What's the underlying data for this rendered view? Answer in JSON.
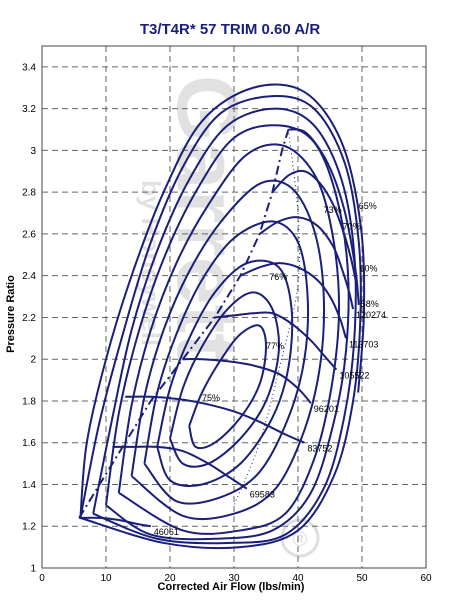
{
  "chart_data": {
    "type": "line",
    "title": "T3/T4R* 57 TRIM  0.60 A/R",
    "xlabel": "Corrected Air Flow (lbs/min)",
    "ylabel": "Pressure Ratio",
    "xlim": [
      0,
      60
    ],
    "ylim": [
      1,
      3.5
    ],
    "x_ticks": [
      0,
      10,
      20,
      30,
      40,
      50,
      60
    ],
    "y_ticks": [
      1,
      1.2,
      1.4,
      1.6,
      1.8,
      2,
      2.2,
      2.4,
      2.6,
      2.8,
      3,
      3.2,
      3.4
    ],
    "grid": true,
    "line_color": "#1a1f7a",
    "watermark": {
      "brand": "Garrett",
      "tagline": "by Honeywell",
      "mark": "®"
    },
    "surge_line": [
      [
        5.8,
        1.24
      ],
      [
        9,
        1.4
      ],
      [
        13,
        1.6
      ],
      [
        17,
        1.8
      ],
      [
        22,
        2.0
      ],
      [
        27,
        2.2
      ],
      [
        31,
        2.4
      ],
      [
        34,
        2.6
      ],
      [
        36,
        2.8
      ],
      [
        37.5,
        3.0
      ],
      [
        38.5,
        3.1
      ]
    ],
    "speed_lines": [
      {
        "rpm": "46061",
        "points": [
          [
            5.8,
            1.24
          ],
          [
            9,
            1.24
          ],
          [
            12,
            1.23
          ],
          [
            15,
            1.21
          ],
          [
            17,
            1.2
          ]
        ]
      },
      {
        "rpm": "69583",
        "points": [
          [
            11,
            1.58
          ],
          [
            14,
            1.58
          ],
          [
            18,
            1.58
          ],
          [
            22,
            1.56
          ],
          [
            26,
            1.5
          ],
          [
            29,
            1.44
          ],
          [
            32,
            1.38
          ]
        ]
      },
      {
        "rpm": "83752",
        "points": [
          [
            13,
            1.82
          ],
          [
            17,
            1.82
          ],
          [
            21,
            1.81
          ],
          [
            25,
            1.79
          ],
          [
            30,
            1.75
          ],
          [
            34,
            1.7
          ],
          [
            38,
            1.64
          ],
          [
            41,
            1.6
          ]
        ]
      },
      {
        "rpm": "96201",
        "points": [
          [
            22,
            2.0
          ],
          [
            25,
            2.0
          ],
          [
            29,
            1.99
          ],
          [
            33,
            1.97
          ],
          [
            37,
            1.93
          ],
          [
            40,
            1.86
          ],
          [
            42,
            1.79
          ]
        ]
      },
      {
        "rpm": "105522",
        "points": [
          [
            27,
            2.2
          ],
          [
            30,
            2.21
          ],
          [
            33,
            2.22
          ],
          [
            36,
            2.22
          ],
          [
            39,
            2.17
          ],
          [
            42,
            2.09
          ],
          [
            44,
            2.02
          ],
          [
            46,
            1.95
          ]
        ]
      },
      {
        "rpm": "113703",
        "points": [
          [
            31,
            2.4
          ],
          [
            34,
            2.44
          ],
          [
            37,
            2.46
          ],
          [
            40,
            2.44
          ],
          [
            43,
            2.38
          ],
          [
            45,
            2.3
          ],
          [
            46.5,
            2.2
          ],
          [
            47.5,
            2.1
          ]
        ]
      },
      {
        "rpm": "120274",
        "points": [
          [
            34,
            2.6
          ],
          [
            37,
            2.66
          ],
          [
            40,
            2.68
          ],
          [
            43,
            2.64
          ],
          [
            45.5,
            2.54
          ],
          [
            47,
            2.42
          ],
          [
            48,
            2.32
          ],
          [
            48.6,
            2.24
          ]
        ]
      },
      {
        "rpm": "",
        "points": [
          [
            36,
            2.8
          ],
          [
            38.5,
            2.88
          ],
          [
            41,
            2.9
          ],
          [
            43.5,
            2.84
          ],
          [
            45.5,
            2.74
          ],
          [
            47.2,
            2.6
          ],
          [
            48.3,
            2.48
          ],
          [
            49,
            2.38
          ]
        ]
      },
      {
        "rpm": "",
        "points": [
          [
            38.5,
            3.1
          ],
          [
            41,
            3.09
          ],
          [
            43.5,
            3.0
          ],
          [
            45.5,
            2.88
          ],
          [
            47.2,
            2.72
          ],
          [
            48.3,
            2.56
          ],
          [
            49.1,
            2.4
          ],
          [
            49.5,
            2.26
          ]
        ]
      }
    ],
    "efficiency_islands": [
      {
        "label": "",
        "points": [
          [
            23,
            1.68
          ],
          [
            25,
            1.84
          ],
          [
            28,
            2.0
          ],
          [
            31,
            2.12
          ],
          [
            34,
            2.16
          ],
          [
            35,
            2.06
          ],
          [
            34,
            1.88
          ],
          [
            31,
            1.72
          ],
          [
            27,
            1.6
          ],
          [
            24,
            1.58
          ],
          [
            23,
            1.68
          ]
        ]
      },
      {
        "label": "",
        "points": [
          [
            20,
            1.62
          ],
          [
            22,
            1.86
          ],
          [
            25,
            2.06
          ],
          [
            29,
            2.24
          ],
          [
            33,
            2.32
          ],
          [
            36,
            2.24
          ],
          [
            37,
            2.04
          ],
          [
            35,
            1.8
          ],
          [
            31,
            1.62
          ],
          [
            26,
            1.5
          ],
          [
            22,
            1.5
          ],
          [
            20,
            1.62
          ]
        ]
      },
      {
        "label": "77%",
        "points": [
          [
            18,
            1.58
          ],
          [
            20,
            1.86
          ],
          [
            23,
            2.1
          ],
          [
            27,
            2.32
          ],
          [
            32,
            2.46
          ],
          [
            37,
            2.44
          ],
          [
            39,
            2.24
          ],
          [
            38.5,
            1.96
          ],
          [
            36,
            1.72
          ],
          [
            31,
            1.5
          ],
          [
            25,
            1.4
          ],
          [
            20,
            1.42
          ],
          [
            18,
            1.58
          ]
        ]
      },
      {
        "label": "76%",
        "points": [
          [
            16,
            1.5
          ],
          [
            18,
            1.84
          ],
          [
            21,
            2.12
          ],
          [
            25,
            2.38
          ],
          [
            30,
            2.58
          ],
          [
            36,
            2.66
          ],
          [
            40,
            2.56
          ],
          [
            41.5,
            2.3
          ],
          [
            41,
            2.0
          ],
          [
            38.5,
            1.72
          ],
          [
            34,
            1.46
          ],
          [
            28,
            1.34
          ],
          [
            21,
            1.32
          ],
          [
            16,
            1.5
          ]
        ]
      },
      {
        "label": "75%",
        "points": [
          [
            14,
            1.44
          ],
          [
            16,
            1.82
          ],
          [
            19,
            2.14
          ],
          [
            23,
            2.42
          ],
          [
            28,
            2.66
          ],
          [
            34,
            2.84
          ],
          [
            39,
            2.82
          ],
          [
            42.5,
            2.62
          ],
          [
            44,
            2.32
          ],
          [
            43.5,
            1.98
          ],
          [
            41,
            1.66
          ],
          [
            36.5,
            1.38
          ],
          [
            30,
            1.26
          ],
          [
            22,
            1.25
          ],
          [
            14,
            1.44
          ]
        ]
      },
      {
        "label": "73%",
        "points": [
          [
            12,
            1.36
          ],
          [
            14,
            1.78
          ],
          [
            17,
            2.14
          ],
          [
            21,
            2.46
          ],
          [
            26,
            2.74
          ],
          [
            32,
            2.98
          ],
          [
            38,
            3.02
          ],
          [
            43,
            2.86
          ],
          [
            45.6,
            2.56
          ],
          [
            46.4,
            2.22
          ],
          [
            45.2,
            1.86
          ],
          [
            42.5,
            1.52
          ],
          [
            38,
            1.26
          ],
          [
            31,
            1.18
          ],
          [
            22,
            1.18
          ],
          [
            12,
            1.36
          ]
        ]
      },
      {
        "label": "70%",
        "points": [
          [
            10,
            1.3
          ],
          [
            12,
            1.74
          ],
          [
            15,
            2.12
          ],
          [
            19,
            2.48
          ],
          [
            24,
            2.8
          ],
          [
            30,
            3.06
          ],
          [
            37,
            3.12
          ],
          [
            42.5,
            3.04
          ],
          [
            46,
            2.78
          ],
          [
            47.8,
            2.42
          ],
          [
            47.5,
            2.04
          ],
          [
            45.6,
            1.7
          ],
          [
            42,
            1.36
          ],
          [
            36,
            1.18
          ],
          [
            27,
            1.14
          ],
          [
            17,
            1.16
          ],
          [
            10,
            1.3
          ]
        ]
      },
      {
        "label": "65%",
        "points": [
          [
            8,
            1.26
          ],
          [
            11,
            1.72
          ],
          [
            14,
            2.14
          ],
          [
            18,
            2.52
          ],
          [
            23,
            2.86
          ],
          [
            29,
            3.12
          ],
          [
            36.5,
            3.2
          ],
          [
            42.5,
            3.12
          ],
          [
            46.8,
            2.86
          ],
          [
            48.8,
            2.5
          ],
          [
            48.8,
            2.1
          ],
          [
            47.2,
            1.72
          ],
          [
            44,
            1.38
          ],
          [
            38,
            1.16
          ],
          [
            29,
            1.12
          ],
          [
            18,
            1.14
          ],
          [
            8,
            1.26
          ]
        ]
      },
      {
        "label": "60%",
        "points": [
          [
            6,
            1.24
          ],
          [
            9,
            1.7
          ],
          [
            13,
            2.16
          ],
          [
            17,
            2.56
          ],
          [
            22,
            2.92
          ],
          [
            28,
            3.18
          ],
          [
            36,
            3.26
          ],
          [
            42.5,
            3.2
          ],
          [
            47.3,
            2.94
          ],
          [
            49.5,
            2.56
          ],
          [
            49.7,
            2.16
          ],
          [
            48.5,
            1.78
          ],
          [
            45.6,
            1.44
          ],
          [
            40,
            1.18
          ],
          [
            31,
            1.1
          ],
          [
            19,
            1.12
          ],
          [
            6,
            1.24
          ]
        ]
      },
      {
        "label": "58%",
        "points": [
          [
            6,
            1.24
          ],
          [
            7,
            1.6
          ],
          [
            10,
            2.0
          ],
          [
            14,
            2.4
          ],
          [
            19,
            2.8
          ],
          [
            25,
            3.14
          ],
          [
            33,
            3.3
          ],
          [
            41,
            3.28
          ],
          [
            46.8,
            3.04
          ],
          [
            49.8,
            2.64
          ],
          [
            50.3,
            2.22
          ],
          [
            49.4,
            1.84
          ]
        ]
      }
    ],
    "efficiency_label_points": [
      [
        35,
        2.05
      ],
      [
        35.5,
        2.38
      ],
      [
        25,
        1.8
      ],
      [
        44,
        2.7
      ],
      [
        47,
        2.62
      ],
      [
        49.5,
        2.72
      ],
      [
        49.6,
        2.42
      ],
      [
        49.8,
        2.25
      ],
      [
        33,
        1.82
      ],
      [
        31,
        1.72
      ]
    ],
    "choke_line": [
      [
        38.5,
        3.1
      ],
      [
        40,
        2.7
      ],
      [
        40,
        2.36
      ],
      [
        37.6,
        2.02
      ],
      [
        34,
        1.6
      ],
      [
        30,
        1.3
      ]
    ]
  }
}
